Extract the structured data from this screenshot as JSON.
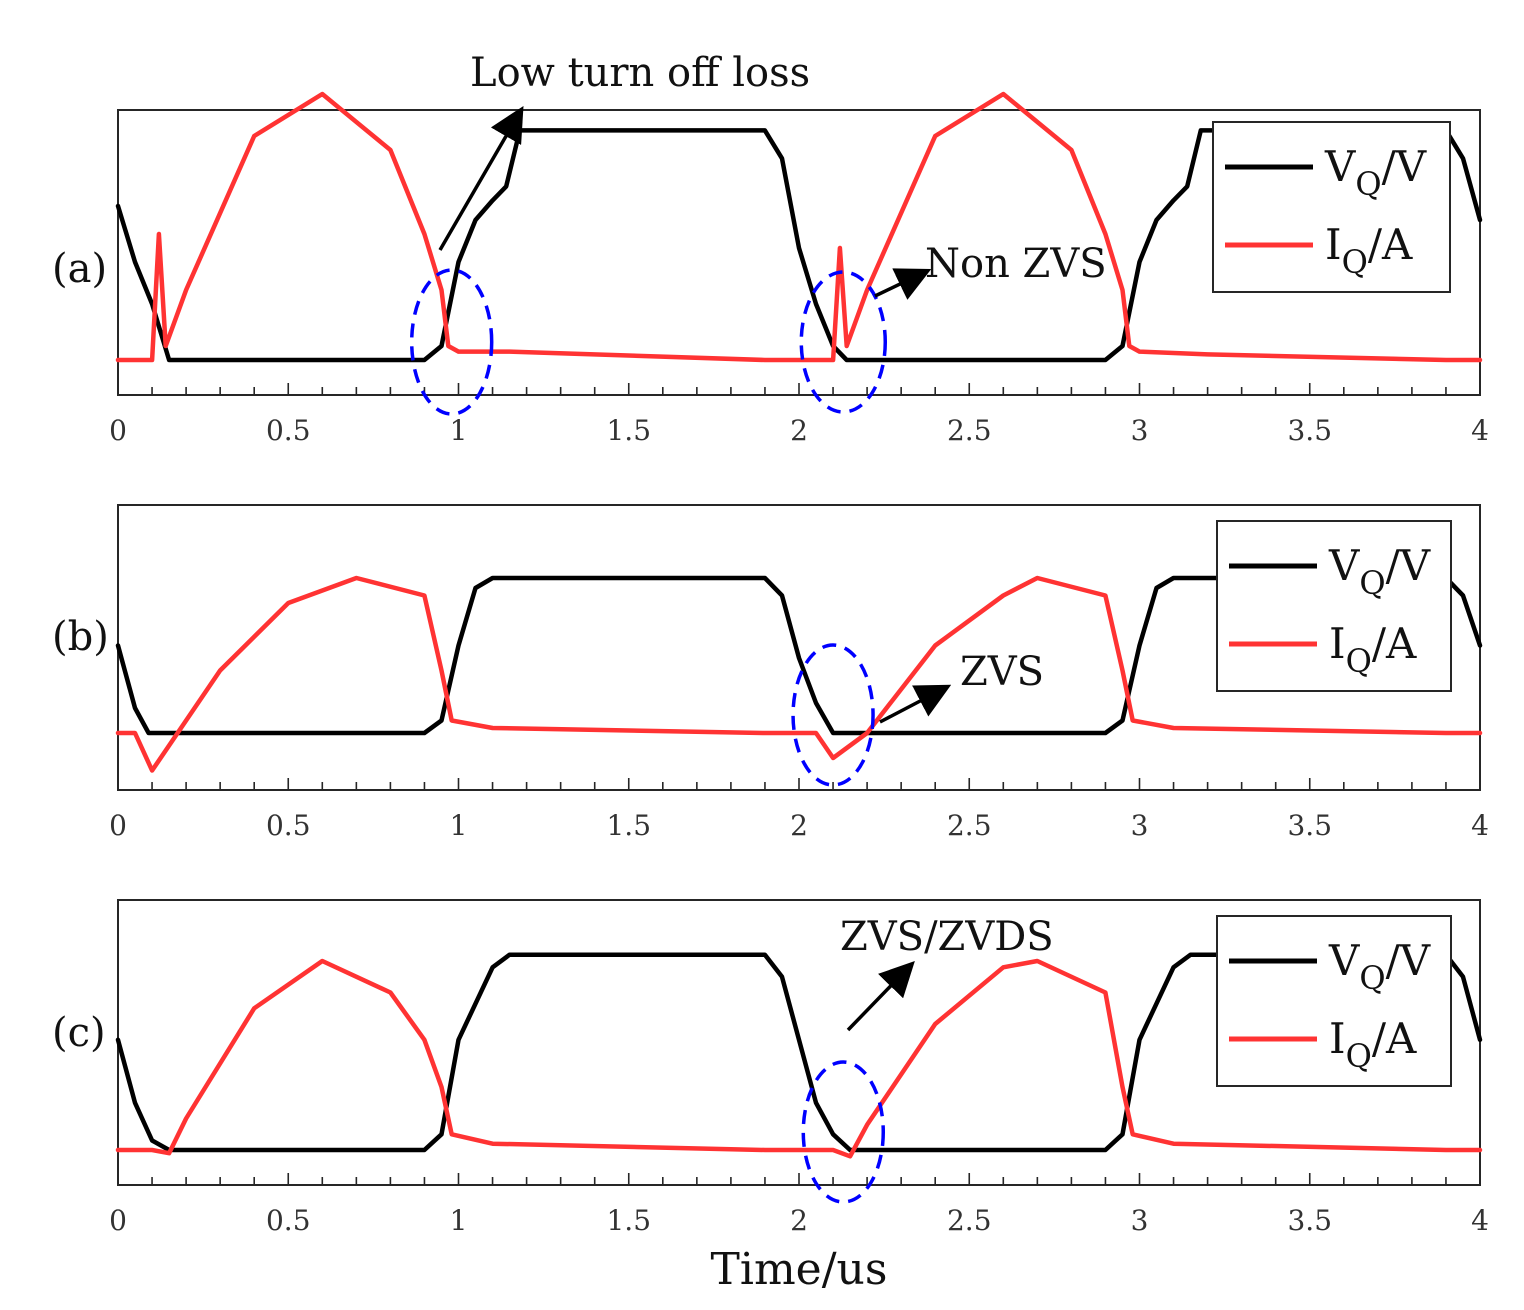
{
  "chart_data": {
    "type": "line",
    "xlabel": "Time/us",
    "xlim": [
      0,
      4
    ],
    "xticks": [
      0,
      0.5,
      1,
      1.5,
      2,
      2.5,
      3,
      3.5,
      4
    ],
    "xtick_labels": [
      "0",
      "0.5",
      "1",
      "1.5",
      "2",
      "2.5",
      "3",
      "3.5",
      "4"
    ],
    "legend": [
      {
        "main": "V",
        "sub": "Q",
        "unit": "/V",
        "color": "#000000"
      },
      {
        "main": "I",
        "sub": "Q",
        "unit": "/A",
        "color": "#ff3333"
      }
    ],
    "legend_placement": "top-right",
    "ellipse_color": "#0000ff",
    "panels": [
      {
        "label": "(a)",
        "annotations": [
          {
            "text": "Low turn off loss",
            "target_x": 0.95,
            "target_level": 0.45
          },
          {
            "text": "Non ZVS",
            "target_x": 2.15,
            "target_level": 0.3
          }
        ],
        "highlight_x": [
          0.98,
          2.13
        ],
        "series": [
          {
            "name": "VQ/V",
            "values": [
              [
                0,
                0.55
              ],
              [
                0.05,
                0.35
              ],
              [
                0.1,
                0.2
              ],
              [
                0.15,
                0.0
              ],
              [
                0.9,
                0.0
              ],
              [
                0.95,
                0.05
              ],
              [
                1.0,
                0.35
              ],
              [
                1.05,
                0.5
              ],
              [
                1.1,
                0.57
              ],
              [
                1.14,
                0.62
              ],
              [
                1.18,
                0.82
              ],
              [
                1.9,
                0.82
              ],
              [
                1.95,
                0.72
              ],
              [
                2.0,
                0.4
              ],
              [
                2.05,
                0.2
              ],
              [
                2.1,
                0.05
              ],
              [
                2.14,
                0.0
              ],
              [
                2.9,
                0.0
              ],
              [
                2.95,
                0.05
              ],
              [
                3.0,
                0.35
              ],
              [
                3.05,
                0.5
              ],
              [
                3.1,
                0.57
              ],
              [
                3.14,
                0.62
              ],
              [
                3.18,
                0.82
              ],
              [
                3.9,
                0.82
              ],
              [
                3.95,
                0.72
              ],
              [
                4.0,
                0.5
              ]
            ]
          },
          {
            "name": "IQ/A",
            "values": [
              [
                0,
                0.0
              ],
              [
                0.1,
                0.0
              ],
              [
                0.12,
                0.45
              ],
              [
                0.14,
                0.05
              ],
              [
                0.2,
                0.25
              ],
              [
                0.4,
                0.8
              ],
              [
                0.6,
                0.95
              ],
              [
                0.8,
                0.75
              ],
              [
                0.9,
                0.45
              ],
              [
                0.95,
                0.25
              ],
              [
                0.97,
                0.05
              ],
              [
                1.0,
                0.03
              ],
              [
                1.15,
                0.03
              ],
              [
                1.9,
                0.0
              ],
              [
                2.1,
                0.0
              ],
              [
                2.12,
                0.4
              ],
              [
                2.14,
                0.05
              ],
              [
                2.2,
                0.25
              ],
              [
                2.4,
                0.8
              ],
              [
                2.6,
                0.95
              ],
              [
                2.8,
                0.75
              ],
              [
                2.9,
                0.45
              ],
              [
                2.95,
                0.25
              ],
              [
                2.97,
                0.05
              ],
              [
                3.0,
                0.03
              ],
              [
                3.2,
                0.02
              ],
              [
                3.9,
                0.0
              ],
              [
                4.0,
                0.0
              ]
            ]
          }
        ]
      },
      {
        "label": "(b)",
        "annotations": [
          {
            "text": "ZVS",
            "target_x": 2.25,
            "target_level": 0.25
          }
        ],
        "highlight_x": [
          2.1
        ],
        "series": [
          {
            "name": "VQ/V",
            "values": [
              [
                0,
                0.35
              ],
              [
                0.05,
                0.1
              ],
              [
                0.09,
                0.0
              ],
              [
                0.9,
                0.0
              ],
              [
                0.95,
                0.05
              ],
              [
                1.0,
                0.35
              ],
              [
                1.05,
                0.58
              ],
              [
                1.1,
                0.62
              ],
              [
                1.9,
                0.62
              ],
              [
                1.95,
                0.55
              ],
              [
                2.0,
                0.3
              ],
              [
                2.05,
                0.12
              ],
              [
                2.1,
                0.0
              ],
              [
                2.9,
                0.0
              ],
              [
                2.95,
                0.05
              ],
              [
                3.0,
                0.35
              ],
              [
                3.05,
                0.58
              ],
              [
                3.1,
                0.62
              ],
              [
                3.9,
                0.62
              ],
              [
                3.95,
                0.55
              ],
              [
                4.0,
                0.35
              ]
            ]
          },
          {
            "name": "IQ/A",
            "values": [
              [
                0,
                0.0
              ],
              [
                0.05,
                0.0
              ],
              [
                0.1,
                -0.15
              ],
              [
                0.15,
                -0.05
              ],
              [
                0.3,
                0.25
              ],
              [
                0.5,
                0.52
              ],
              [
                0.7,
                0.62
              ],
              [
                0.9,
                0.55
              ],
              [
                0.95,
                0.25
              ],
              [
                0.98,
                0.05
              ],
              [
                1.1,
                0.02
              ],
              [
                1.9,
                0.0
              ],
              [
                2.05,
                0.0
              ],
              [
                2.1,
                -0.1
              ],
              [
                2.2,
                0.0
              ],
              [
                2.4,
                0.35
              ],
              [
                2.6,
                0.55
              ],
              [
                2.7,
                0.62
              ],
              [
                2.9,
                0.55
              ],
              [
                2.95,
                0.25
              ],
              [
                2.98,
                0.05
              ],
              [
                3.1,
                0.02
              ],
              [
                3.9,
                0.0
              ],
              [
                4.0,
                0.0
              ]
            ]
          }
        ]
      },
      {
        "label": "(c)",
        "annotations": [
          {
            "text": "ZVS/ZVDS",
            "target_x": 2.15,
            "target_level": 0.45
          }
        ],
        "highlight_x": [
          2.13
        ],
        "series": [
          {
            "name": "VQ/V",
            "values": [
              [
                0,
                0.35
              ],
              [
                0.05,
                0.15
              ],
              [
                0.1,
                0.03
              ],
              [
                0.15,
                0.0
              ],
              [
                0.9,
                0.0
              ],
              [
                0.95,
                0.05
              ],
              [
                1.0,
                0.35
              ],
              [
                1.1,
                0.58
              ],
              [
                1.15,
                0.62
              ],
              [
                1.9,
                0.62
              ],
              [
                1.95,
                0.55
              ],
              [
                2.0,
                0.35
              ],
              [
                2.05,
                0.15
              ],
              [
                2.1,
                0.05
              ],
              [
                2.15,
                0.0
              ],
              [
                2.9,
                0.0
              ],
              [
                2.95,
                0.05
              ],
              [
                3.0,
                0.35
              ],
              [
                3.1,
                0.58
              ],
              [
                3.15,
                0.62
              ],
              [
                3.9,
                0.62
              ],
              [
                3.95,
                0.55
              ],
              [
                4.0,
                0.35
              ]
            ]
          },
          {
            "name": "IQ/A",
            "values": [
              [
                0,
                0.0
              ],
              [
                0.1,
                0.0
              ],
              [
                0.15,
                -0.01
              ],
              [
                0.2,
                0.1
              ],
              [
                0.4,
                0.45
              ],
              [
                0.6,
                0.6
              ],
              [
                0.8,
                0.5
              ],
              [
                0.9,
                0.35
              ],
              [
                0.95,
                0.2
              ],
              [
                0.98,
                0.05
              ],
              [
                1.1,
                0.02
              ],
              [
                1.9,
                0.0
              ],
              [
                2.1,
                0.0
              ],
              [
                2.15,
                -0.02
              ],
              [
                2.2,
                0.08
              ],
              [
                2.4,
                0.4
              ],
              [
                2.6,
                0.58
              ],
              [
                2.7,
                0.6
              ],
              [
                2.9,
                0.5
              ],
              [
                2.95,
                0.2
              ],
              [
                2.98,
                0.05
              ],
              [
                3.1,
                0.02
              ],
              [
                3.9,
                0.0
              ],
              [
                4.0,
                0.0
              ]
            ]
          }
        ]
      }
    ]
  }
}
